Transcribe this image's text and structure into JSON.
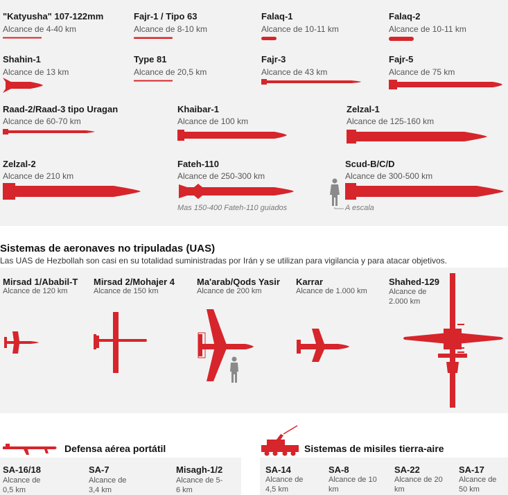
{
  "colors": {
    "missile_red": "#d6252b",
    "panel_bg": "#f2f2f2",
    "human_gray": "#8a8a8a"
  },
  "rockets": [
    {
      "name": "\"Katyusha\" 107-122mm",
      "range": "Alcance de 4-40 km"
    },
    {
      "name": "Fajr-1 / Tipo 63",
      "range": "Alcance de 8-10 km"
    },
    {
      "name": "Falaq-1",
      "range": "Alcance de 10-11 km"
    },
    {
      "name": "Falaq-2",
      "range": "Alcance de 10-11 km"
    },
    {
      "name": "Shahin-1",
      "range": "Alcance de 13 km"
    },
    {
      "name": "Type 81",
      "range": "Alcance de 20,5 km"
    },
    {
      "name": "Fajr-3",
      "range": "Alcance de 43 km"
    },
    {
      "name": "Fajr-5",
      "range": "Alcance de 75 km"
    },
    {
      "name": "Raad-2/Raad-3 tipo Uragan",
      "range": "Alcance de 60-70 km"
    },
    {
      "name": "Khaibar-1",
      "range": "Alcance de 100 km"
    },
    {
      "name": "Zelzal-1",
      "range": "Alcance de 125-160 km"
    },
    {
      "name": "Zelzal-2",
      "range": "Alcance de 210 km"
    },
    {
      "name": "Fateh-110",
      "range": "Alcance de 250-300 km"
    },
    {
      "name": "Scud-B/C/D",
      "range": "Alcance de 300-500 km"
    }
  ],
  "fateh_note": "Mas 150-400 Fateh-110 guiados",
  "scale_note": "A escala",
  "uas": {
    "title": "Sistemas de aeronaves no tripuladas (UAS)",
    "subtitle": "Las UAS de Hezbollah son casi en su totalidad suministradas por Irán y se utilizan para vigilancia y para atacar objetivos.",
    "items": [
      {
        "name": "Mirsad 1/Ababil-T",
        "range": "Alcance de 120 km"
      },
      {
        "name": "Mirsad 2/Mohajer 4",
        "range": "Alcance de 150 km"
      },
      {
        "name": "Ma'arab/Qods Yasir",
        "range": "Alcance de 200 km"
      },
      {
        "name": "Karrar",
        "range": "Alcance de 1.000 km"
      },
      {
        "name": "Shahed-129",
        "range": "Alcance de 2.000 km"
      }
    ]
  },
  "manpads": {
    "title": "Defensa aérea portátil",
    "items": [
      {
        "name": "SA-16/18",
        "range": "Alcance de 0,5 km"
      },
      {
        "name": "SA-7",
        "range": "Alcance de 3,4 km"
      },
      {
        "name": "Misagh-1/2",
        "range": "Alcance de 5-6 km"
      }
    ]
  },
  "sam": {
    "title": "Sistemas de misiles tierra-aire",
    "items": [
      {
        "name": "SA-14",
        "range": "Alcance de 4,5 km"
      },
      {
        "name": "SA-8",
        "range": "Alcance de 10 km"
      },
      {
        "name": "SA-22",
        "range": "Alcance de 20 km"
      },
      {
        "name": "SA-17",
        "range": "Alcance de 50 km"
      }
    ]
  }
}
